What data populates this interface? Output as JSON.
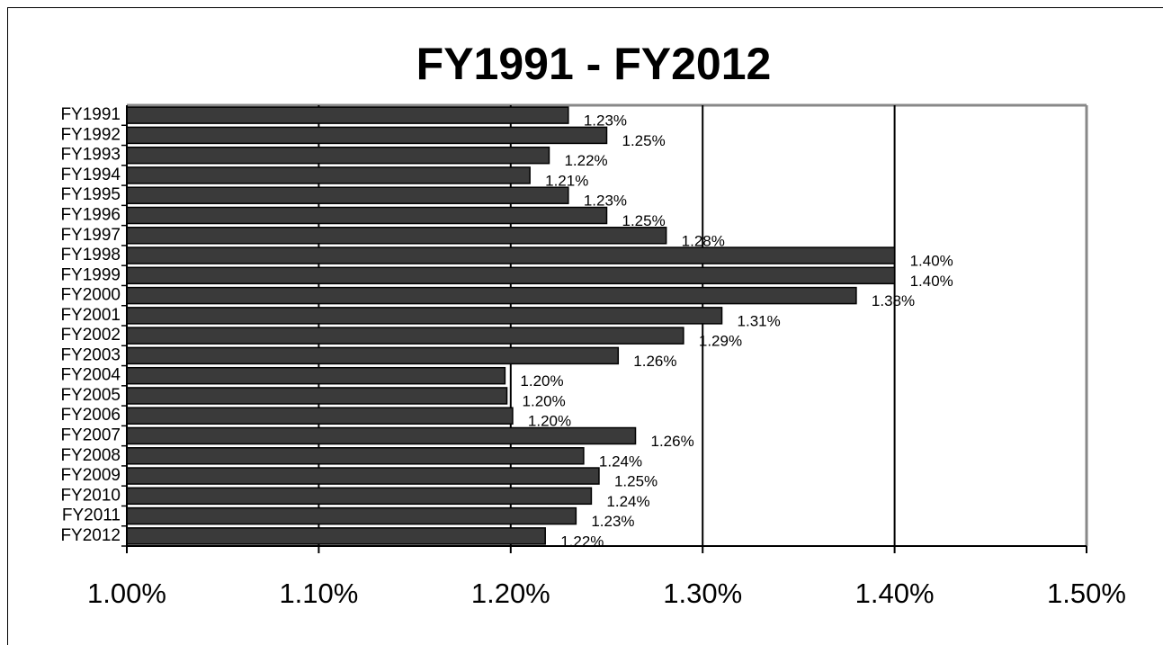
{
  "chart_data": {
    "type": "bar",
    "orientation": "horizontal",
    "title": "FY1991 - FY2012",
    "categories": [
      "FY1991",
      "FY1992",
      "FY1993",
      "FY1994",
      "FY1995",
      "FY1996",
      "FY1997",
      "FY1998",
      "FY1999",
      "FY2000",
      "FY2001",
      "FY2002",
      "FY2003",
      "FY2004",
      "FY2005",
      "FY2006",
      "FY2007",
      "FY2008",
      "FY2009",
      "FY2010",
      "FY2011",
      "FY2012"
    ],
    "values": [
      1.23,
      1.25,
      1.22,
      1.21,
      1.23,
      1.25,
      1.281,
      1.4,
      1.4,
      1.38,
      1.31,
      1.29,
      1.256,
      1.197,
      1.198,
      1.201,
      1.265,
      1.238,
      1.246,
      1.242,
      1.234,
      1.218
    ],
    "value_labels": [
      "1.23%",
      "1.25%",
      "1.22%",
      "1.21%",
      "1.23%",
      "1.25%",
      "1.28%",
      "1.40%",
      "1.40%",
      "1.38%",
      "1.31%",
      "1.29%",
      "1.26%",
      "1.20%",
      "1.20%",
      "1.20%",
      "1.26%",
      "1.24%",
      "1.25%",
      "1.24%",
      "1.23%",
      "1.22%"
    ],
    "color": "#3a3a3a",
    "xlim": [
      1.0,
      1.5
    ],
    "xticks": [
      {
        "value": 1.0,
        "label": "1.00%"
      },
      {
        "value": 1.1,
        "label": "1.10%"
      },
      {
        "value": 1.2,
        "label": "1.20%"
      },
      {
        "value": 1.3,
        "label": "1.30%"
      },
      {
        "value": 1.4,
        "label": "1.40%"
      },
      {
        "value": 1.5,
        "label": "1.50%"
      }
    ],
    "grid": true
  }
}
